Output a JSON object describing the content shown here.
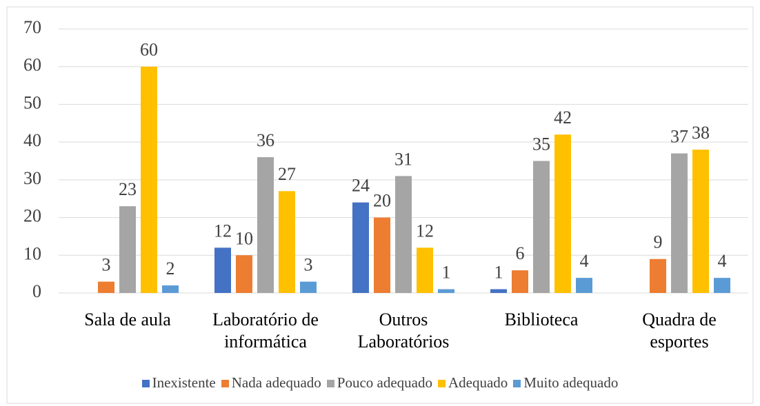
{
  "chart_data": {
    "type": "bar",
    "categories": [
      "Sala de aula",
      "Laboratório de informática",
      "Outros Laboratórios",
      "Biblioteca",
      "Quadra de esportes"
    ],
    "series": [
      {
        "name": "Inexistente",
        "color": "#4472c4",
        "values": [
          null,
          12,
          24,
          1,
          null
        ]
      },
      {
        "name": "Nada adequado",
        "color": "#ed7d31",
        "values": [
          3,
          10,
          20,
          6,
          9
        ]
      },
      {
        "name": "Pouco adequado",
        "color": "#a5a5a5",
        "values": [
          23,
          36,
          31,
          35,
          37
        ]
      },
      {
        "name": "Adequado",
        "color": "#ffc000",
        "values": [
          60,
          27,
          12,
          42,
          38
        ]
      },
      {
        "name": "Muito adequado",
        "color": "#5b9bd5",
        "values": [
          2,
          3,
          1,
          4,
          4
        ]
      }
    ],
    "ylim": [
      0,
      70
    ],
    "yticks": [
      0,
      10,
      20,
      30,
      40,
      50,
      60,
      70
    ],
    "grid": true,
    "legend": "bottom"
  }
}
